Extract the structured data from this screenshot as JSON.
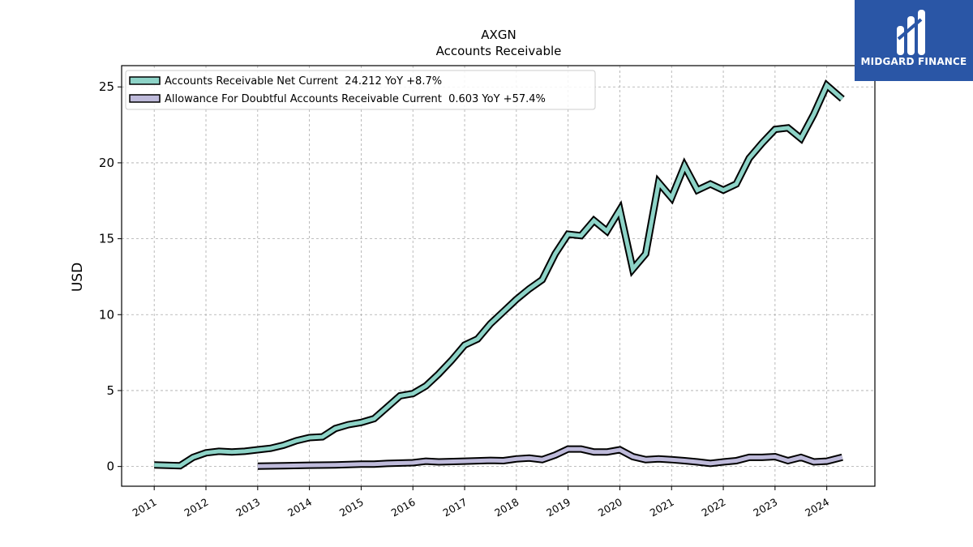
{
  "brand": {
    "name": "MIDGARD FINANCE",
    "color": "#2a56a6",
    "icon": "midgard-logo-icon"
  },
  "chart_data": {
    "type": "line",
    "title": "AXGN",
    "subtitle": "Accounts Receivable",
    "xlabel": "",
    "ylabel": "USD",
    "ylim": [
      -1.3,
      26.4
    ],
    "xlim": [
      2010.37,
      2024.93
    ],
    "yticks": [
      0,
      5,
      10,
      15,
      20,
      25
    ],
    "xticks": [
      2011,
      2012,
      2013,
      2014,
      2015,
      2016,
      2017,
      2018,
      2019,
      2020,
      2021,
      2022,
      2023,
      2024
    ],
    "grid": true,
    "legend_position": "top-left",
    "series": [
      {
        "name": "Accounts Receivable Net Current  24.212 YoY +8.7%",
        "color": "#8dd3c7",
        "points": [
          [
            2011.0,
            0.1
          ],
          [
            2011.5,
            0.05
          ],
          [
            2011.75,
            0.6
          ],
          [
            2012.0,
            0.9
          ],
          [
            2012.25,
            1.0
          ],
          [
            2012.5,
            0.95
          ],
          [
            2012.75,
            1.0
          ],
          [
            2013.0,
            1.1
          ],
          [
            2013.25,
            1.2
          ],
          [
            2013.5,
            1.4
          ],
          [
            2013.75,
            1.7
          ],
          [
            2014.0,
            1.9
          ],
          [
            2014.25,
            1.95
          ],
          [
            2014.5,
            2.5
          ],
          [
            2014.75,
            2.75
          ],
          [
            2015.0,
            2.9
          ],
          [
            2015.25,
            3.15
          ],
          [
            2015.5,
            3.9
          ],
          [
            2015.75,
            4.65
          ],
          [
            2016.0,
            4.8
          ],
          [
            2016.25,
            5.3
          ],
          [
            2016.5,
            6.1
          ],
          [
            2016.75,
            7.0
          ],
          [
            2017.0,
            8.0
          ],
          [
            2017.25,
            8.4
          ],
          [
            2017.5,
            9.4
          ],
          [
            2017.75,
            10.2
          ],
          [
            2018.0,
            11.0
          ],
          [
            2018.25,
            11.7
          ],
          [
            2018.5,
            12.3
          ],
          [
            2018.75,
            14.0
          ],
          [
            2019.0,
            15.3
          ],
          [
            2019.25,
            15.2
          ],
          [
            2019.5,
            16.2
          ],
          [
            2019.75,
            15.5
          ],
          [
            2020.0,
            16.9
          ],
          [
            2020.25,
            13.0
          ],
          [
            2020.5,
            14.0
          ],
          [
            2020.75,
            18.7
          ],
          [
            2021.0,
            17.7
          ],
          [
            2021.25,
            19.8
          ],
          [
            2021.5,
            18.2
          ],
          [
            2021.75,
            18.6
          ],
          [
            2022.0,
            18.2
          ],
          [
            2022.25,
            18.6
          ],
          [
            2022.5,
            20.3
          ],
          [
            2022.75,
            21.3
          ],
          [
            2023.0,
            22.2
          ],
          [
            2023.25,
            22.3
          ],
          [
            2023.5,
            21.6
          ],
          [
            2023.75,
            23.2
          ],
          [
            2024.0,
            25.1
          ],
          [
            2024.3,
            24.212
          ]
        ]
      },
      {
        "name": "Allowance For Doubtful Accounts Receivable Current  0.603 YoY +57.4%",
        "color": "#bebada",
        "points": [
          [
            2013.0,
            0.02
          ],
          [
            2013.5,
            0.05
          ],
          [
            2014.0,
            0.08
          ],
          [
            2014.5,
            0.1
          ],
          [
            2015.0,
            0.15
          ],
          [
            2015.25,
            0.15
          ],
          [
            2015.5,
            0.2
          ],
          [
            2016.0,
            0.25
          ],
          [
            2016.25,
            0.35
          ],
          [
            2016.5,
            0.3
          ],
          [
            2017.0,
            0.35
          ],
          [
            2017.5,
            0.4
          ],
          [
            2017.75,
            0.38
          ],
          [
            2018.0,
            0.5
          ],
          [
            2018.25,
            0.55
          ],
          [
            2018.5,
            0.45
          ],
          [
            2018.75,
            0.75
          ],
          [
            2019.0,
            1.15
          ],
          [
            2019.25,
            1.15
          ],
          [
            2019.5,
            0.95
          ],
          [
            2019.75,
            0.95
          ],
          [
            2020.0,
            1.1
          ],
          [
            2020.25,
            0.65
          ],
          [
            2020.5,
            0.45
          ],
          [
            2020.75,
            0.5
          ],
          [
            2021.0,
            0.45
          ],
          [
            2021.25,
            0.38
          ],
          [
            2021.5,
            0.3
          ],
          [
            2021.75,
            0.2
          ],
          [
            2022.0,
            0.3
          ],
          [
            2022.25,
            0.38
          ],
          [
            2022.5,
            0.6
          ],
          [
            2022.75,
            0.6
          ],
          [
            2023.0,
            0.65
          ],
          [
            2023.25,
            0.38
          ],
          [
            2023.5,
            0.6
          ],
          [
            2023.75,
            0.3
          ],
          [
            2024.0,
            0.35
          ],
          [
            2024.3,
            0.603
          ]
        ]
      }
    ]
  }
}
